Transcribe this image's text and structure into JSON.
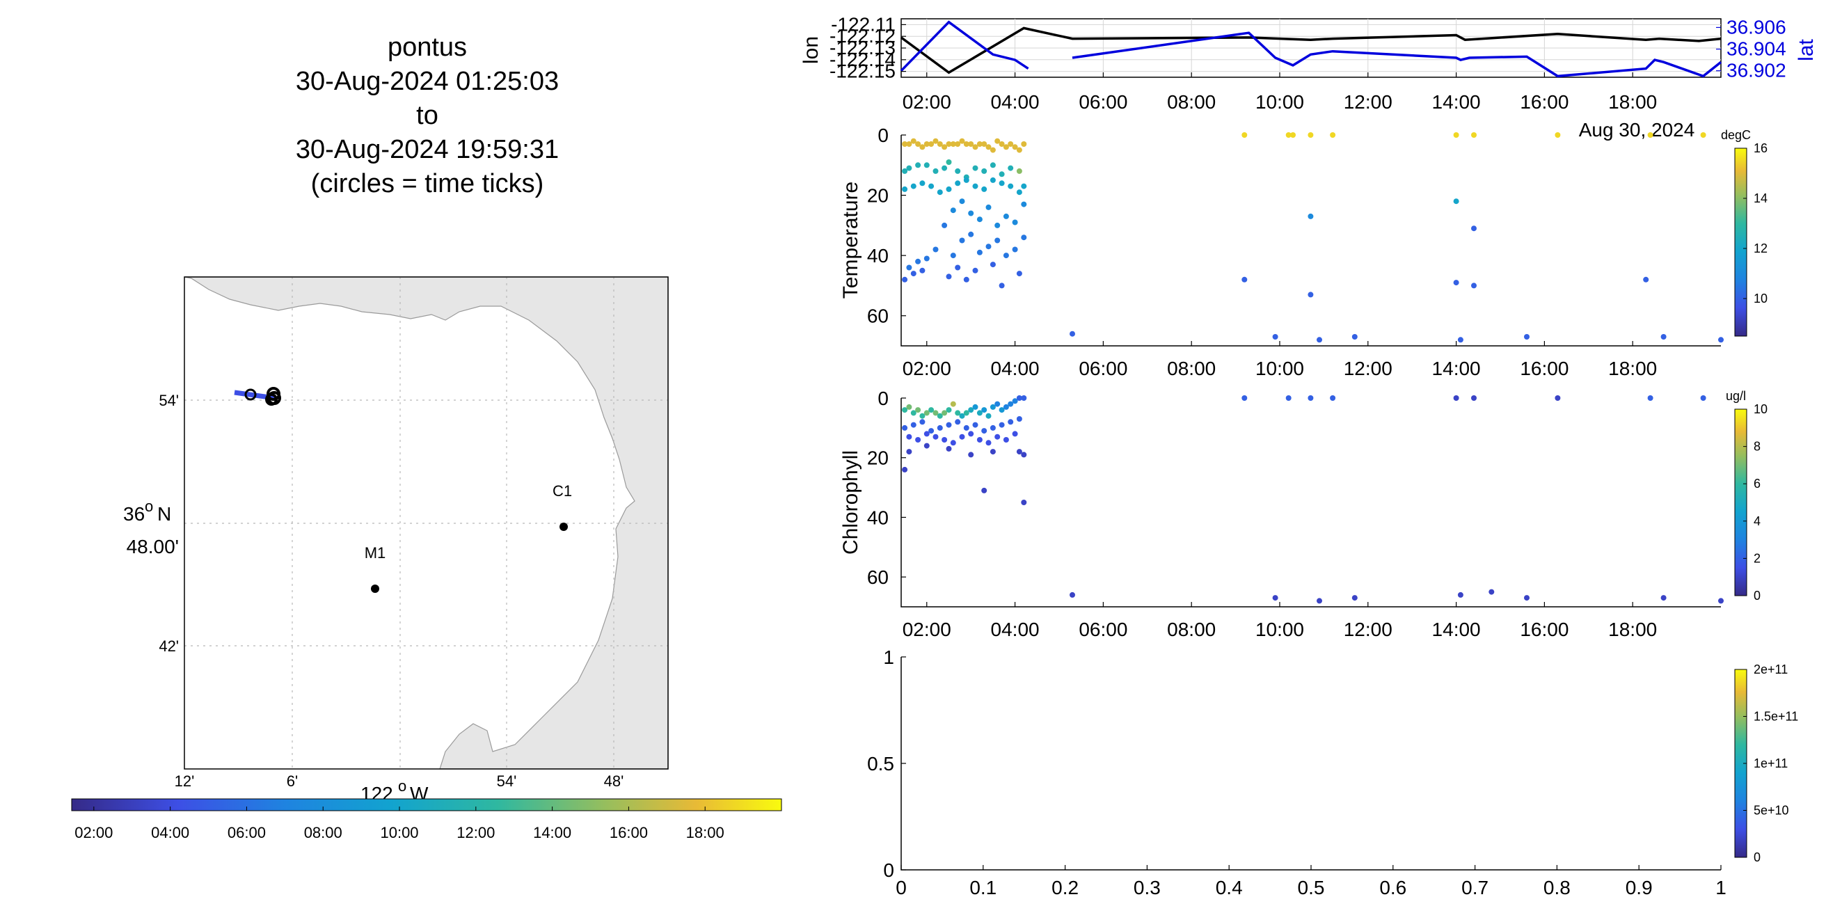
{
  "title": {
    "lines": [
      "pontus",
      "30-Aug-2024 01:25:03",
      "to",
      "30-Aug-2024 19:59:31",
      "(circles = time ticks)"
    ]
  },
  "map": {
    "lat_ticks": [
      "54'",
      "48.00'",
      "42'"
    ],
    "lat_deg_label": "36",
    "lat_deg_suffix": "N",
    "lon_ticks": [
      "12'",
      "6'",
      "54'",
      "48'"
    ],
    "lon_deg_label": "122",
    "lon_deg_suffix": "W",
    "degree_symbol": "o",
    "stations": [
      {
        "name": "C1"
      },
      {
        "name": "M1"
      }
    ],
    "time_colorbar_ticks": [
      "02:00",
      "04:00",
      "06:00",
      "08:00",
      "10:00",
      "12:00",
      "14:00",
      "16:00",
      "18:00"
    ]
  },
  "time_axis": {
    "ticks": [
      "02:00",
      "04:00",
      "06:00",
      "08:00",
      "10:00",
      "12:00",
      "14:00",
      "16:00",
      "18:00"
    ],
    "date_label": "Aug 30, 2024",
    "range_hours": [
      1.42,
      20.0
    ]
  },
  "chart_data": [
    {
      "type": "line",
      "title": "",
      "ylabel": "lon",
      "ylabel_right": "lat",
      "ylim": [
        -122.155,
        -122.105
      ],
      "ylim_right": [
        36.9014,
        36.9068
      ],
      "yticks": [
        "-122.11",
        "-122.12",
        "-122.13",
        "-122.14",
        "-122.15"
      ],
      "yticks_right": [
        "36.906",
        "36.904",
        "36.902"
      ],
      "series": [
        {
          "name": "lon",
          "color": "#000000",
          "x": [
            1.42,
            2.5,
            4.2,
            5.3,
            9.3,
            10.7,
            11.2,
            14.0,
            14.2,
            16.3,
            18.3,
            18.6,
            19.5,
            20.0
          ],
          "y": [
            -122.121,
            -122.151,
            -122.113,
            -122.122,
            -122.121,
            -122.123,
            -122.122,
            -122.119,
            -122.123,
            -122.118,
            -122.123,
            -122.122,
            -122.124,
            -122.122
          ]
        },
        {
          "name": "lat",
          "color": "#0000dd",
          "x": [
            1.42,
            2.5,
            3.5,
            4.0,
            4.3,
            5.3,
            9.3,
            9.9,
            10.3,
            10.7,
            11.2,
            14.0,
            14.1,
            14.3,
            15.6,
            16.3,
            18.3,
            18.5,
            18.7,
            19.6,
            20.0
          ],
          "y": [
            36.902,
            36.9065,
            36.9035,
            36.903,
            36.9022,
            36.9032,
            36.9055,
            36.9032,
            36.9025,
            36.9035,
            36.9038,
            36.9032,
            36.903,
            36.9032,
            36.9033,
            36.9015,
            36.9022,
            36.903,
            36.9028,
            36.9015,
            36.9028
          ]
        }
      ]
    },
    {
      "type": "scatter",
      "title": "",
      "ylabel": "Temperature",
      "ylim": [
        70,
        0
      ],
      "yticks": [
        "0",
        "20",
        "40",
        "60"
      ],
      "colorbar": {
        "label": "degC",
        "range": [
          8.5,
          16
        ],
        "ticks": [
          "16",
          "14",
          "12",
          "10"
        ]
      },
      "points_x": [
        1.5,
        1.6,
        1.7,
        1.8,
        1.9,
        2.0,
        2.1,
        2.2,
        2.3,
        2.4,
        2.5,
        2.6,
        2.7,
        2.8,
        2.9,
        3.0,
        3.1,
        3.2,
        3.3,
        3.4,
        3.5,
        3.6,
        3.7,
        3.8,
        3.9,
        4.0,
        4.1,
        4.2,
        1.5,
        1.6,
        1.8,
        2.0,
        2.2,
        2.4,
        2.5,
        2.7,
        2.9,
        3.1,
        3.3,
        3.5,
        3.7,
        3.9,
        4.1,
        1.5,
        1.7,
        1.9,
        2.1,
        2.3,
        2.5,
        2.7,
        2.9,
        3.1,
        3.3,
        3.5,
        3.7,
        3.9,
        4.1,
        4.2,
        2.4,
        2.6,
        2.8,
        3.0,
        3.2,
        3.4,
        3.6,
        3.8,
        4.0,
        4.2,
        1.6,
        1.8,
        2.0,
        2.2,
        2.6,
        2.8,
        3.0,
        3.2,
        3.4,
        3.6,
        3.8,
        4.0,
        4.2,
        1.5,
        1.7,
        1.9,
        2.5,
        2.7,
        2.9,
        3.1,
        3.5,
        3.7,
        4.1,
        9.2,
        10.2,
        10.3,
        10.7,
        11.2,
        14.0,
        14.4,
        16.3,
        18.4,
        19.6,
        14.0,
        14.4,
        10.7,
        9.2,
        10.7,
        14.0,
        14.4,
        18.3,
        5.3,
        9.9,
        10.9,
        11.7,
        14.1,
        15.6,
        18.7,
        20.0
      ],
      "points_depth": [
        3,
        3,
        2,
        3,
        4,
        3,
        3,
        2,
        3,
        4,
        3,
        3,
        3,
        2,
        3,
        3,
        4,
        3,
        3,
        4,
        5,
        2,
        3,
        4,
        3,
        4,
        5,
        3,
        12,
        11,
        10,
        10,
        12,
        11,
        9,
        12,
        14,
        11,
        12,
        10,
        13,
        11,
        12,
        18,
        17,
        16,
        17,
        19,
        18,
        16,
        15,
        17,
        18,
        15,
        16,
        17,
        19,
        17,
        30,
        25,
        22,
        26,
        28,
        24,
        30,
        27,
        29,
        23,
        44,
        42,
        41,
        38,
        40,
        35,
        33,
        39,
        37,
        35,
        40,
        38,
        34,
        48,
        46,
        45,
        47,
        44,
        48,
        45,
        43,
        50,
        46,
        0,
        0,
        0,
        0,
        0,
        0,
        0,
        0,
        0,
        0,
        22,
        31,
        27,
        48,
        53,
        49,
        50,
        48,
        66,
        67,
        68,
        67,
        68,
        67,
        67,
        68
      ],
      "points_temp": [
        15,
        15,
        15,
        15,
        15,
        15,
        15,
        15,
        15,
        15,
        15,
        15,
        15,
        15,
        15,
        15,
        15,
        15,
        15,
        15,
        15,
        15,
        15,
        15,
        15,
        15,
        15,
        15,
        12.5,
        12.5,
        12.5,
        12.5,
        12.5,
        12.5,
        13,
        12.5,
        12.5,
        12.5,
        12.5,
        12.5,
        12.5,
        12.5,
        14,
        12,
        12,
        12,
        12,
        12,
        12,
        12,
        12,
        12,
        12,
        12,
        12,
        12,
        12,
        12,
        10.5,
        11,
        11,
        11,
        11,
        11,
        11,
        11,
        11,
        11,
        10.5,
        10.5,
        10.5,
        10.5,
        10.5,
        10.5,
        10.5,
        10.5,
        10.5,
        10.5,
        10.5,
        10.5,
        10.5,
        10,
        10,
        10,
        10,
        10,
        10,
        10,
        10,
        10,
        10,
        15.5,
        15.5,
        15.5,
        15.5,
        15.5,
        15.5,
        15.5,
        15.5,
        15.5,
        15.5,
        12,
        10,
        11,
        10,
        10,
        10,
        10,
        10,
        10,
        10,
        10,
        10,
        10,
        10,
        10,
        10
      ]
    },
    {
      "type": "scatter",
      "title": "",
      "ylabel": "Chlorophyll",
      "ylim": [
        70,
        0
      ],
      "yticks": [
        "0",
        "20",
        "40",
        "60"
      ],
      "colorbar": {
        "label": "ug/l",
        "range": [
          0,
          10
        ],
        "ticks": [
          "10",
          "8",
          "6",
          "4",
          "2",
          "0"
        ]
      },
      "points_x": [
        1.5,
        1.6,
        1.7,
        1.8,
        1.9,
        2.0,
        2.1,
        2.2,
        2.3,
        2.4,
        2.5,
        2.6,
        2.7,
        2.8,
        2.9,
        3.0,
        3.1,
        3.2,
        3.3,
        3.4,
        3.5,
        3.6,
        3.7,
        3.8,
        3.9,
        4.0,
        4.1,
        4.2,
        1.5,
        1.7,
        1.9,
        2.1,
        2.3,
        2.5,
        2.7,
        2.9,
        3.1,
        3.3,
        3.5,
        3.7,
        3.9,
        4.1,
        1.6,
        1.8,
        2.0,
        2.2,
        2.4,
        2.6,
        2.8,
        3.0,
        3.2,
        3.4,
        3.6,
        3.8,
        4.0,
        1.6,
        2.0,
        2.5,
        3.0,
        3.5,
        4.1,
        4.2,
        1.5,
        3.3,
        4.2,
        9.2,
        10.2,
        10.7,
        11.2,
        14.0,
        14.4,
        16.3,
        18.4,
        19.6,
        5.3,
        9.9,
        10.9,
        11.7,
        14.1,
        14.8,
        15.6,
        18.7,
        20.0
      ],
      "points_depth": [
        4,
        3,
        5,
        4,
        6,
        5,
        4,
        5,
        6,
        5,
        4,
        2,
        5,
        6,
        5,
        4,
        3,
        5,
        4,
        6,
        3,
        2,
        4,
        3,
        2,
        1,
        0,
        0,
        10,
        9,
        8,
        11,
        10,
        9,
        8,
        10,
        9,
        11,
        10,
        9,
        8,
        7,
        13,
        14,
        12,
        13,
        14,
        15,
        13,
        12,
        14,
        15,
        13,
        14,
        12,
        18,
        16,
        17,
        19,
        18,
        18,
        19,
        24,
        31,
        35,
        0,
        0,
        0,
        0,
        0,
        0,
        0,
        0,
        0,
        66,
        67,
        68,
        67,
        66,
        65,
        67,
        67,
        68
      ],
      "points_chl": [
        6,
        7,
        6,
        7,
        6,
        7,
        6,
        7,
        6,
        7,
        6,
        8,
        6,
        5,
        6,
        5,
        4,
        5,
        4,
        5,
        4,
        3,
        4,
        3,
        3,
        3,
        2,
        2,
        2,
        2,
        2,
        2,
        2,
        2,
        2,
        2,
        2,
        2,
        2,
        2,
        2,
        2,
        1.5,
        1.5,
        1.5,
        1.5,
        1.5,
        1.5,
        1.5,
        1.5,
        1.5,
        1.5,
        1.5,
        1.5,
        1.5,
        1,
        1,
        1,
        1,
        1,
        1,
        1,
        1,
        1,
        1,
        2,
        2,
        2,
        2,
        1,
        1,
        1,
        2,
        2,
        1,
        1,
        1,
        1,
        1,
        1,
        1,
        1,
        1
      ]
    },
    {
      "type": "scatter",
      "title": "",
      "ylabel": "",
      "xlim": [
        0,
        1
      ],
      "ylim": [
        0,
        1
      ],
      "xticks": [
        "0",
        "0.1",
        "0.2",
        "0.3",
        "0.4",
        "0.5",
        "0.6",
        "0.7",
        "0.8",
        "0.9",
        "1"
      ],
      "yticks": [
        "0",
        "0.5",
        "1"
      ],
      "colorbar": {
        "label": "",
        "range": [
          0,
          200000000000
        ],
        "ticks": [
          "2e+11",
          "1.5e+11",
          "1e+11",
          "5e+10",
          "0"
        ]
      },
      "series": []
    }
  ]
}
